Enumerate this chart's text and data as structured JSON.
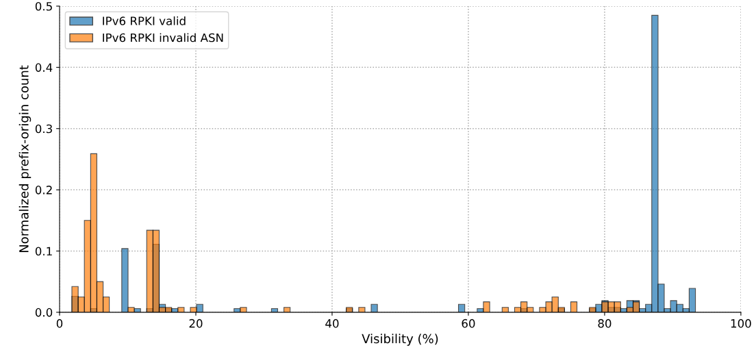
{
  "chart_data": {
    "type": "histogram",
    "xlabel": "Visibility (%)",
    "ylabel": "Normalized prefix-origin count",
    "bins": [
      1.81,
      2.73,
      3.64,
      4.56,
      5.47,
      6.39,
      7.3,
      8.22,
      9.13,
      10.05,
      10.96,
      11.88,
      12.79,
      13.71,
      14.62,
      15.54,
      16.45,
      17.37,
      18.28,
      19.2,
      20.11,
      21.03,
      21.94,
      22.86,
      23.77,
      24.69,
      25.61,
      26.52,
      27.44,
      28.35,
      29.27,
      30.18,
      31.1,
      32.01,
      32.93,
      33.84,
      34.76,
      35.67,
      36.59,
      37.5,
      38.42,
      39.33,
      40.25,
      41.16,
      42.08,
      42.99,
      43.91,
      44.82,
      45.74,
      46.65,
      47.57,
      48.49,
      49.4,
      50.32,
      51.23,
      52.15,
      53.06,
      53.98,
      54.89,
      55.81,
      56.72,
      57.64,
      58.55,
      59.47,
      60.38,
      61.3,
      62.21,
      63.13,
      64.04,
      64.96,
      65.87,
      66.79,
      67.7,
      68.62,
      69.53,
      70.45,
      71.37,
      72.28,
      73.2,
      74.11,
      75.03,
      75.94,
      76.86,
      77.77,
      78.69,
      79.6,
      80.52,
      81.43,
      82.35,
      83.26,
      84.18,
      85.09,
      86.01,
      86.92,
      87.84,
      88.75,
      89.67,
      90.58,
      91.5,
      92.41,
      93.33
    ],
    "series": [
      {
        "name": "IPv6 RPKI valid",
        "color": "#1f77b4",
        "values": [
          0.026,
          0,
          0,
          0.006,
          0,
          0,
          0,
          0,
          0.104,
          0,
          0.006,
          0,
          0.006,
          0.111,
          0.013,
          0.006,
          0.006,
          0,
          0,
          0,
          0.013,
          0,
          0,
          0,
          0,
          0,
          0.006,
          0,
          0,
          0,
          0,
          0,
          0.006,
          0,
          0,
          0,
          0,
          0,
          0,
          0,
          0,
          0,
          0,
          0,
          0.006,
          0,
          0,
          0,
          0.013,
          0,
          0,
          0,
          0,
          0,
          0,
          0,
          0,
          0,
          0,
          0,
          0,
          0,
          0.013,
          0,
          0,
          0.006,
          0,
          0,
          0,
          0,
          0,
          0,
          0.006,
          0,
          0,
          0,
          0,
          0,
          0.006,
          0,
          0,
          0,
          0,
          0.006,
          0.013,
          0.019,
          0.008,
          0.008,
          0.006,
          0.019,
          0.019,
          0.006,
          0.013,
          0.485,
          0.046,
          0.006,
          0.019,
          0.013,
          0.006,
          0.039
        ]
      },
      {
        "name": "IPv6 RPKI invalid ASN",
        "color": "#ff7f0e",
        "values": [
          0.042,
          0.025,
          0.15,
          0.259,
          0.05,
          0.025,
          0,
          0,
          0,
          0.008,
          0,
          0,
          0.134,
          0.134,
          0.008,
          0.008,
          0,
          0.008,
          0,
          0.008,
          0,
          0,
          0,
          0,
          0,
          0,
          0,
          0.008,
          0,
          0,
          0,
          0,
          0,
          0,
          0.008,
          0,
          0,
          0,
          0,
          0,
          0,
          0,
          0,
          0,
          0.008,
          0,
          0.008,
          0,
          0,
          0,
          0,
          0,
          0,
          0,
          0,
          0,
          0,
          0,
          0,
          0,
          0,
          0,
          0,
          0,
          0,
          0,
          0.017,
          0,
          0,
          0.008,
          0,
          0.008,
          0.017,
          0.008,
          0,
          0.008,
          0.017,
          0.025,
          0.008,
          0,
          0.017,
          0,
          0,
          0.008,
          0,
          0.017,
          0.017,
          0.017,
          0,
          0.008,
          0.017,
          0,
          0,
          0,
          0,
          0,
          0,
          0,
          0,
          0
        ]
      }
    ],
    "xlim": [
      0,
      100
    ],
    "xticks": [
      0,
      20,
      40,
      60,
      80,
      100
    ],
    "ylim": [
      0,
      0.5
    ],
    "yticks": [
      {
        "value": 0,
        "label": "0.0"
      },
      0.1,
      0.2,
      0.3,
      0.4,
      0.5
    ],
    "grid": true,
    "legend": "top left"
  }
}
